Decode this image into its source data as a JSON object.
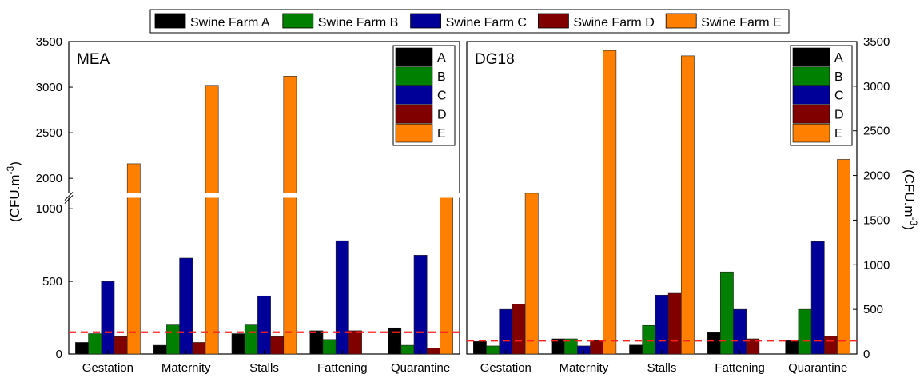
{
  "legend": {
    "entries": [
      {
        "label": "Swine Farm A",
        "color": "#000000"
      },
      {
        "label": "Swine Farm B",
        "color": "#008000"
      },
      {
        "label": "Swine Farm C",
        "color": "#000099"
      },
      {
        "label": "Swine Farm D",
        "color": "#800000"
      },
      {
        "label": "Swine Farm E",
        "color": "#ff8000"
      }
    ]
  },
  "chart_data": [
    {
      "type": "bar",
      "title": "MEA",
      "ylabel": "(CFU.m-3)",
      "axis_break": {
        "lower_range": [
          0,
          1100
        ],
        "upper_range": [
          1800,
          3500
        ]
      },
      "yticks_lower": [
        0,
        500,
        1000
      ],
      "yticks_upper": [
        2000,
        2500,
        3000,
        3500
      ],
      "threshold_line": 150,
      "categories": [
        "Gestation",
        "Maternity",
        "Stalls",
        "Fattening",
        "Quarantine"
      ],
      "series": [
        {
          "name": "A",
          "color": "#000000",
          "values": [
            80,
            60,
            140,
            160,
            180
          ]
        },
        {
          "name": "B",
          "color": "#008000",
          "values": [
            140,
            200,
            200,
            100,
            60
          ]
        },
        {
          "name": "C",
          "color": "#000099",
          "values": [
            500,
            660,
            400,
            780,
            680
          ]
        },
        {
          "name": "D",
          "color": "#800000",
          "values": [
            120,
            80,
            120,
            160,
            40
          ]
        },
        {
          "name": "E",
          "color": "#ff8000",
          "values": [
            2160,
            3020,
            3120,
            0,
            1740
          ]
        }
      ]
    },
    {
      "type": "bar",
      "title": "DG18",
      "ylabel": "(CFU.m-3)",
      "ylim": [
        0,
        3500
      ],
      "yticks": [
        0,
        500,
        1000,
        1500,
        2000,
        2500,
        3000,
        3500
      ],
      "threshold_line": 150,
      "categories": [
        "Gestation",
        "Maternity",
        "Stalls",
        "Fattening",
        "Quarantine"
      ],
      "series": [
        {
          "name": "A",
          "color": "#000000",
          "values": [
            140,
            170,
            100,
            240,
            150
          ]
        },
        {
          "name": "B",
          "color": "#008000",
          "values": [
            90,
            170,
            320,
            920,
            500
          ]
        },
        {
          "name": "C",
          "color": "#000099",
          "values": [
            500,
            90,
            660,
            500,
            1260
          ]
        },
        {
          "name": "D",
          "color": "#800000",
          "values": [
            560,
            150,
            680,
            170,
            200
          ]
        },
        {
          "name": "E",
          "color": "#ff8000",
          "values": [
            1800,
            3400,
            3340,
            0,
            2180
          ]
        }
      ]
    }
  ]
}
